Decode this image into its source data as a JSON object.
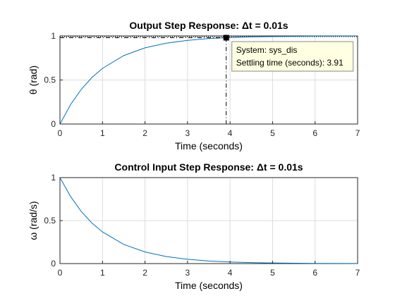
{
  "chart_data": [
    {
      "type": "line",
      "title": "Output Step Response: Δt = 0.01s",
      "xlabel": "Time (seconds)",
      "ylabel": "θ (rad)",
      "xlim": [
        0,
        7
      ],
      "ylim": [
        0,
        1
      ],
      "xticks": [
        "0",
        "1",
        "2",
        "3",
        "4",
        "5",
        "6",
        "7"
      ],
      "yticks": [
        "0",
        "0.5",
        "1"
      ],
      "grid": true,
      "series": [
        {
          "x": [
            0,
            0.25,
            0.5,
            0.75,
            1,
            1.5,
            2,
            2.5,
            3,
            3.5,
            3.91,
            4.5,
            5,
            6,
            7
          ],
          "values": [
            0,
            0.221,
            0.393,
            0.528,
            0.632,
            0.777,
            0.865,
            0.918,
            0.95,
            0.97,
            0.98,
            0.989,
            0.993,
            0.998,
            0.999
          ]
        }
      ],
      "reference_lines": {
        "final_value": 1,
        "settling_band_upper": 1.02,
        "settling_band_lower": 0.98
      },
      "marker": {
        "x": 3.91,
        "y": 0.98,
        "datatip": {
          "line1": "System: sys_dis",
          "line2": "Settling time (seconds): 3.91"
        }
      }
    },
    {
      "type": "line",
      "title": "Control Input Step Response: Δt = 0.01s",
      "xlabel": "Time (seconds)",
      "ylabel": "ω (rad/s)",
      "xlim": [
        0,
        7
      ],
      "ylim": [
        0,
        1
      ],
      "xticks": [
        "0",
        "1",
        "2",
        "3",
        "4",
        "5",
        "6",
        "7"
      ],
      "yticks": [
        "0",
        "0.5",
        "1"
      ],
      "grid": true,
      "series": [
        {
          "x": [
            0,
            0.25,
            0.5,
            0.75,
            1,
            1.5,
            2,
            2.5,
            3,
            3.5,
            4,
            4.5,
            5,
            6,
            7
          ],
          "values": [
            1,
            0.779,
            0.607,
            0.472,
            0.368,
            0.223,
            0.135,
            0.082,
            0.05,
            0.03,
            0.018,
            0.011,
            0.007,
            0.002,
            0.001
          ]
        }
      ],
      "reference_lines": {
        "final_value": 0
      }
    }
  ],
  "colors": {
    "series": "#0072bd",
    "grid": "#dcdcdc",
    "datatip_background": "#ffffe1"
  }
}
